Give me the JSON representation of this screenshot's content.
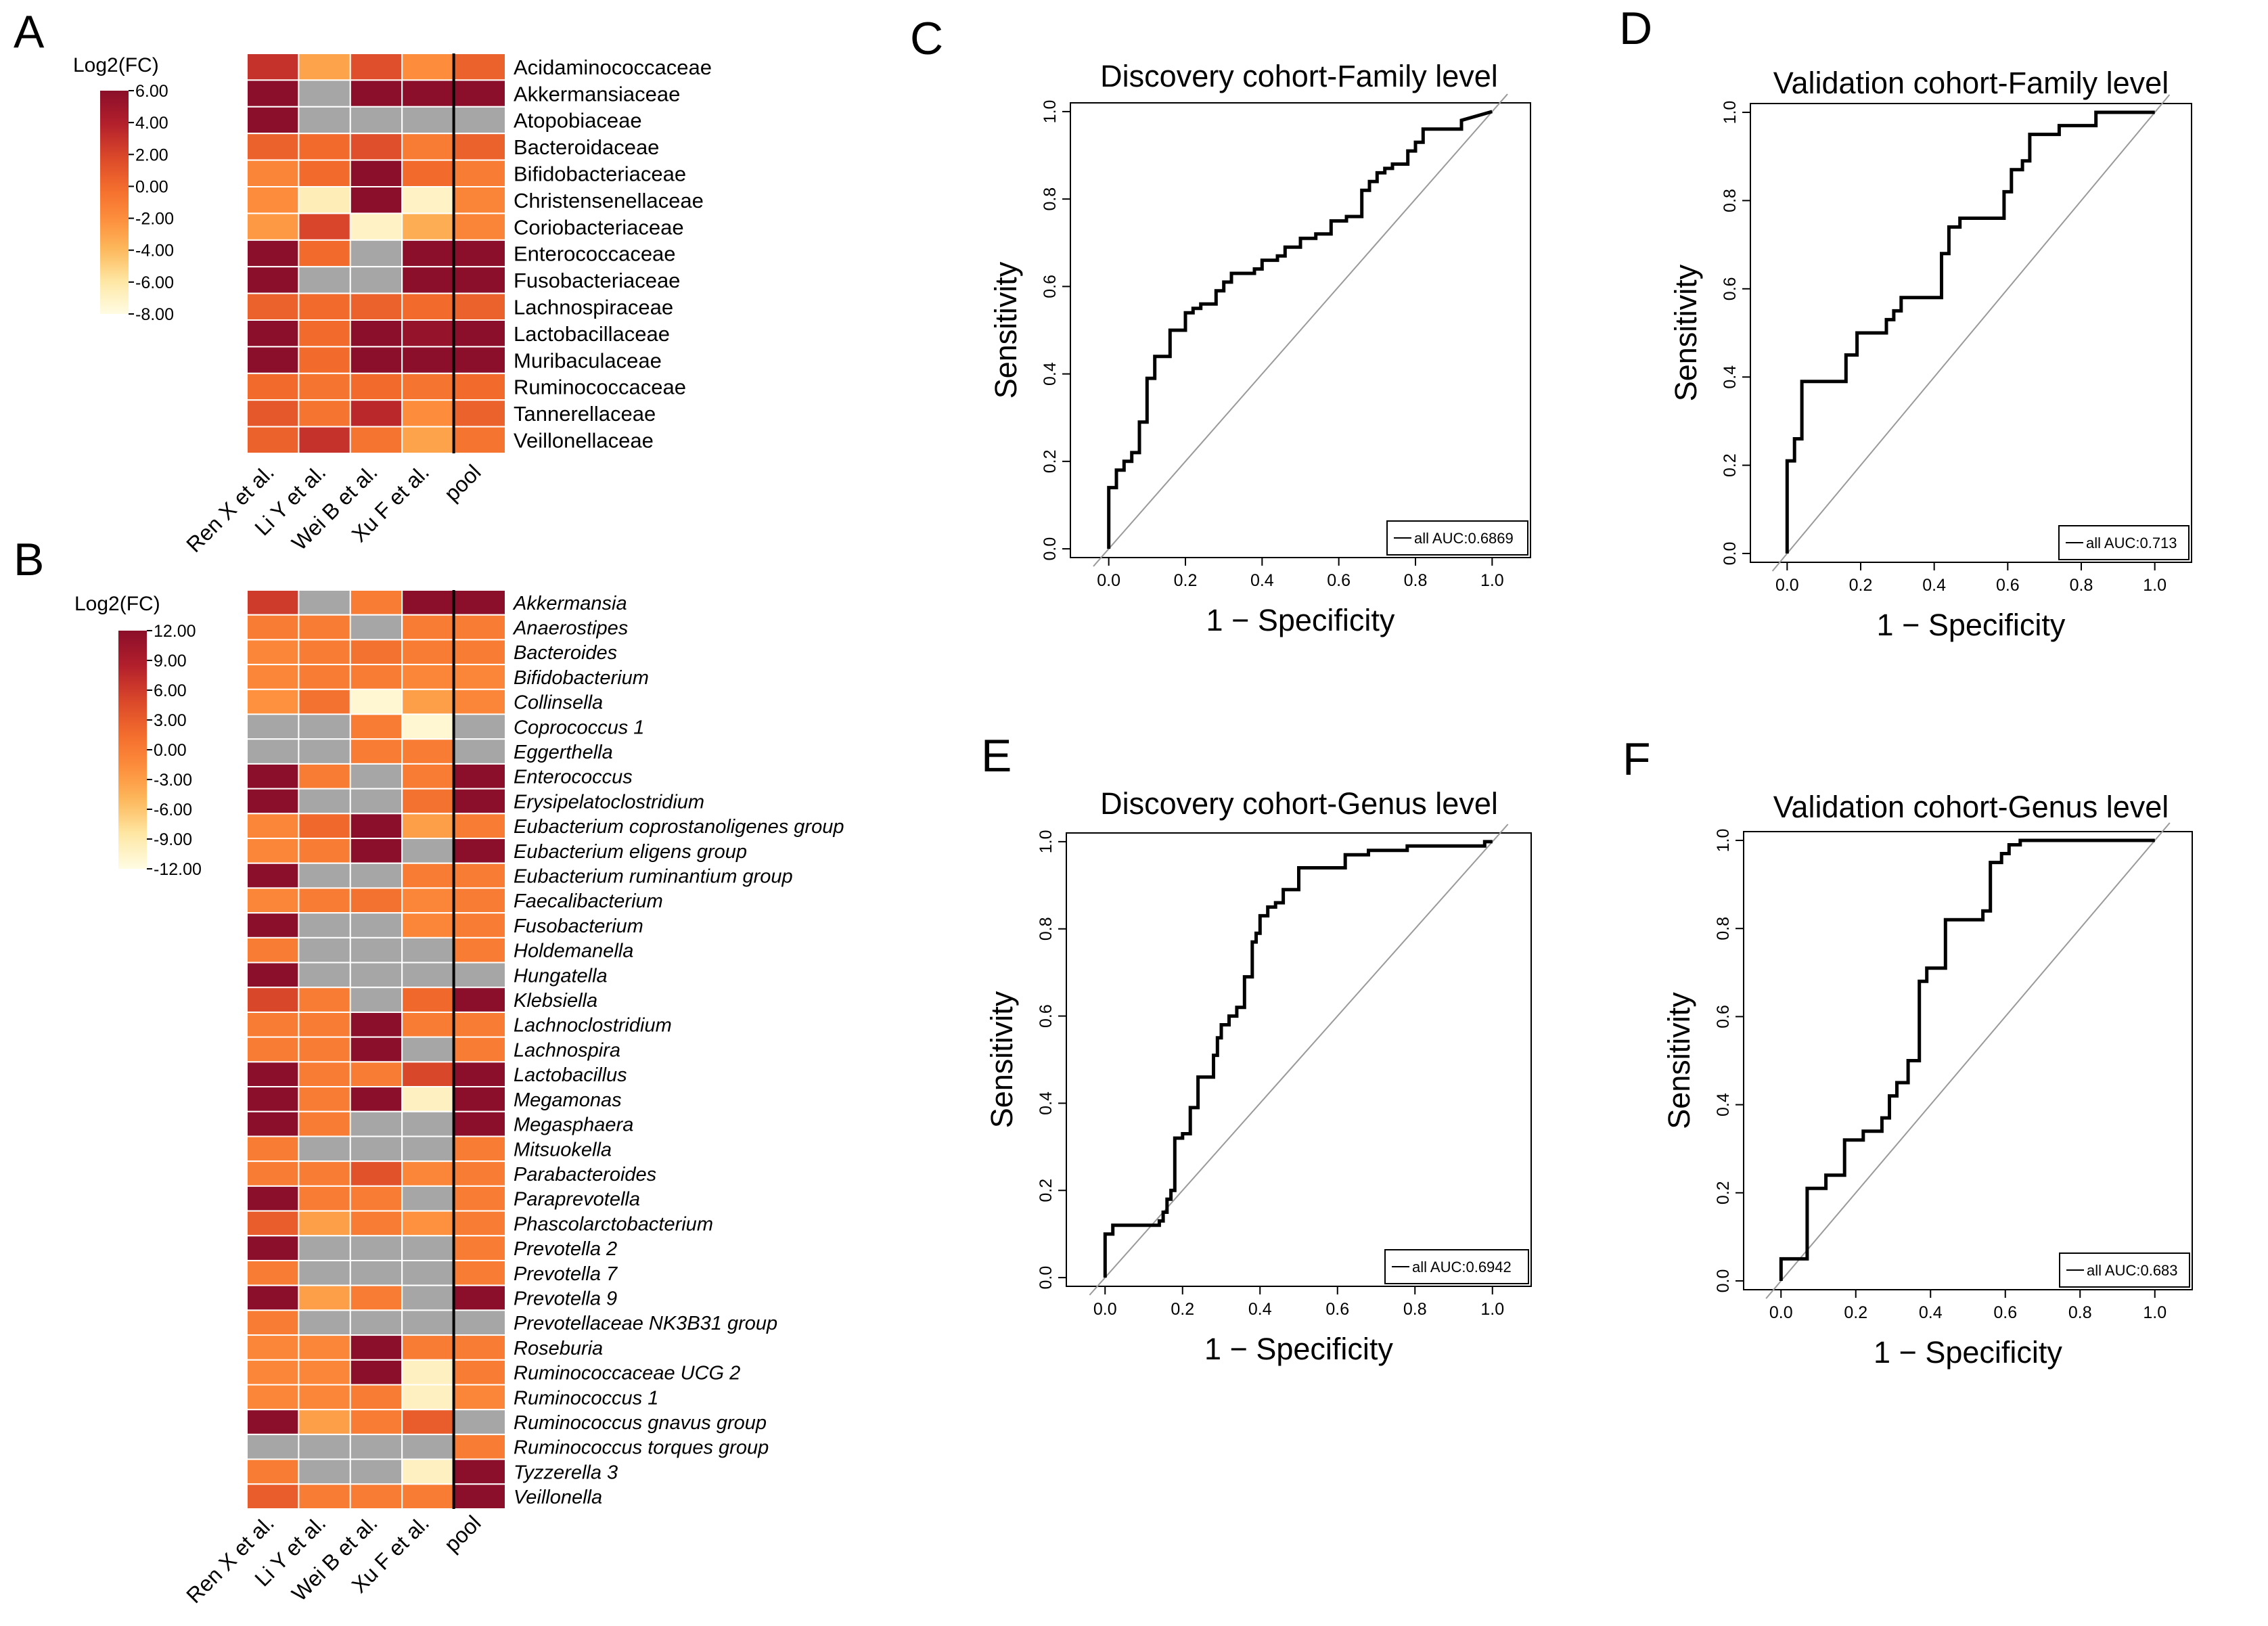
{
  "panel_labels": [
    "A",
    "B",
    "C",
    "D",
    "E",
    "F"
  ],
  "palette": {
    "gray": "#a6a6a6",
    "stops": [
      "#fffce4",
      "#fee8a6",
      "#fdb95c",
      "#fd8d3c",
      "#f26b2c",
      "#d8452a",
      "#b11e2c",
      "#8b0f2a"
    ]
  },
  "chart_data": [
    {
      "panel": "A",
      "type": "heatmap",
      "legend_title": "Log2(FC)",
      "legend_ticks": [
        "6.00",
        "4.00",
        "2.00",
        "0.00",
        "-2.00",
        "-4.00",
        "-6.00",
        "-8.00"
      ],
      "scale_range": [
        -8,
        6
      ],
      "columns": [
        "Ren X et al.",
        "Li Y et al.",
        "Wei B et al.",
        "Xu F et al.",
        "pool"
      ],
      "rows": [
        "Acidaminococcaceae",
        "Akkermansiaceae",
        "Atopobiaceae",
        "Bacteroidaceae",
        "Bifidobacteriaceae",
        "Christensenellaceae",
        "Coriobacteriaceae",
        "Enterococcaceae",
        "Fusobacteriaceae",
        "Lachnospiraceae",
        "Lactobacillaceae",
        "Muribaculaceae",
        "Ruminococcaceae",
        "Tannerellaceae",
        "Veillonellaceae"
      ],
      "values": [
        [
          3,
          -3,
          1.5,
          -2,
          0.5
        ],
        [
          6,
          null,
          6,
          6,
          6
        ],
        [
          6,
          null,
          null,
          null,
          null
        ],
        [
          0.5,
          0,
          1.5,
          -1,
          0.5
        ],
        [
          -1.5,
          0,
          6,
          0,
          -1
        ],
        [
          -2,
          -6.5,
          6,
          -7,
          -1.5
        ],
        [
          -2.5,
          2,
          -7,
          -3.5,
          -1.5
        ],
        [
          6,
          0,
          null,
          6,
          6
        ],
        [
          6,
          null,
          null,
          6,
          6
        ],
        [
          0.5,
          0,
          0.5,
          0,
          0.5
        ],
        [
          6,
          0,
          6,
          5.5,
          6
        ],
        [
          6,
          0,
          6,
          6,
          6
        ],
        [
          0,
          -0.5,
          0,
          -0.5,
          0
        ],
        [
          1,
          -0.5,
          3.5,
          -2,
          0.5
        ],
        [
          0.5,
          3,
          -0.5,
          -3,
          -0.5
        ]
      ],
      "italic_rows": false
    },
    {
      "panel": "B",
      "type": "heatmap",
      "legend_title": "Log2(FC)",
      "legend_ticks": [
        "12.00",
        "9.00",
        "6.00",
        "3.00",
        "0.00",
        "-3.00",
        "-6.00",
        "-9.00",
        "-12.00"
      ],
      "scale_range": [
        -12,
        12
      ],
      "columns": [
        "Ren X et al.",
        "Li Y et al.",
        "Wei B et al.",
        "Xu F et al.",
        "pool"
      ],
      "rows": [
        "Akkermansia",
        "Anaerostipes",
        "Bacteroides",
        "Bifidobacterium",
        "Collinsella",
        "Coprococcus 1",
        "Eggerthella",
        "Enterococcus",
        "Erysipelatoclostridium",
        "Eubacterium coprostanoligenes group",
        "Eubacterium eligens group",
        "Eubacterium ruminantium group",
        "Faecalibacterium",
        "Fusobacterium",
        "Holdemanella",
        "Hungatella",
        "Klebsiella",
        "Lachnoclostridium",
        "Lachnospira",
        "Lactobacillus",
        "Megamonas",
        "Megasphaera",
        "Mitsuokella",
        "Parabacteroides",
        "Paraprevotella",
        "Phascolarctobacterium",
        "Prevotella 2",
        "Prevotella 7",
        "Prevotella 9",
        "Prevotellaceae NK3B31 group",
        "Roseburia",
        "Ruminococcaceae UCG 2",
        "Ruminococcus 1",
        "Ruminococcus gnavus group",
        "Ruminococcus torques group",
        "Tyzzerella 3",
        "Veillonella"
      ],
      "values": [
        [
          6,
          null,
          0,
          12,
          12
        ],
        [
          0,
          0,
          null,
          0,
          0
        ],
        [
          -1,
          0,
          1,
          0,
          0
        ],
        [
          -1,
          0,
          0,
          -1,
          -1
        ],
        [
          -2,
          1,
          -11,
          -3,
          -1
        ],
        [
          null,
          null,
          0,
          -11,
          null
        ],
        [
          null,
          null,
          0,
          0,
          null
        ],
        [
          12,
          0,
          null,
          0,
          12
        ],
        [
          12,
          null,
          null,
          1,
          12
        ],
        [
          -1,
          2,
          12,
          -3,
          0
        ],
        [
          -1,
          0,
          12,
          null,
          12
        ],
        [
          12,
          null,
          null,
          0,
          0
        ],
        [
          -1,
          0,
          1,
          -1,
          0
        ],
        [
          12,
          null,
          null,
          -1,
          0
        ],
        [
          0,
          null,
          null,
          null,
          0
        ],
        [
          12,
          null,
          null,
          null,
          null
        ],
        [
          5,
          0,
          null,
          2,
          12
        ],
        [
          0,
          0,
          12,
          0,
          0
        ],
        [
          0,
          0,
          12,
          null,
          0
        ],
        [
          12,
          0,
          0,
          5,
          12
        ],
        [
          12,
          0,
          12,
          -10,
          12
        ],
        [
          12,
          0,
          null,
          null,
          12
        ],
        [
          0,
          null,
          null,
          null,
          0
        ],
        [
          0,
          0,
          4,
          -1,
          0
        ],
        [
          12,
          0,
          0,
          null,
          0
        ],
        [
          3,
          -3,
          0,
          -2,
          0
        ],
        [
          12,
          null,
          null,
          null,
          0
        ],
        [
          0,
          null,
          null,
          null,
          0
        ],
        [
          12,
          -3,
          0,
          null,
          12
        ],
        [
          0,
          null,
          null,
          null,
          null
        ],
        [
          -1,
          -1,
          12,
          0,
          0
        ],
        [
          -1,
          -1,
          12,
          -10,
          0
        ],
        [
          -1,
          -1,
          0,
          -10,
          -1
        ],
        [
          12,
          -3,
          0,
          3,
          null
        ],
        [
          null,
          null,
          null,
          null,
          0
        ],
        [
          0,
          null,
          null,
          -10,
          12
        ],
        [
          3,
          0,
          0,
          0,
          12
        ]
      ],
      "italic_rows": true
    },
    {
      "panel": "C",
      "type": "line",
      "title": "Discovery cohort-Family level",
      "xlabel": "1 − Specificity",
      "ylabel": "Sensitivity",
      "xlim": [
        -0.1,
        1.1
      ],
      "ylim": [
        -0.02,
        1.02
      ],
      "ticks": [
        0,
        0.2,
        0.4,
        0.6,
        0.8,
        1
      ],
      "tick_labels": [
        "0.0",
        "0.2",
        "0.4",
        "0.6",
        "0.8",
        "1.0"
      ],
      "legend": "all AUC:0.6869",
      "diagonal": [
        [
          -0.04,
          -0.04
        ],
        [
          1.04,
          1.04
        ]
      ],
      "series": [
        {
          "name": "all",
          "x": [
            0,
            0,
            0.02,
            0.02,
            0.04,
            0.04,
            0.06,
            0.06,
            0.08,
            0.08,
            0.1,
            0.1,
            0.12,
            0.12,
            0.16,
            0.16,
            0.2,
            0.2,
            0.22,
            0.22,
            0.24,
            0.24,
            0.28,
            0.28,
            0.3,
            0.3,
            0.32,
            0.32,
            0.38,
            0.38,
            0.4,
            0.4,
            0.44,
            0.44,
            0.46,
            0.46,
            0.5,
            0.5,
            0.54,
            0.54,
            0.58,
            0.58,
            0.62,
            0.62,
            0.66,
            0.66,
            0.68,
            0.68,
            0.7,
            0.7,
            0.72,
            0.72,
            0.74,
            0.74,
            0.78,
            0.78,
            0.8,
            0.8,
            0.82,
            0.82,
            0.92,
            0.92,
            1
          ],
          "y": [
            0,
            0.14,
            0.14,
            0.18,
            0.18,
            0.2,
            0.2,
            0.22,
            0.22,
            0.29,
            0.29,
            0.39,
            0.39,
            0.44,
            0.44,
            0.5,
            0.5,
            0.54,
            0.54,
            0.55,
            0.55,
            0.56,
            0.56,
            0.59,
            0.59,
            0.61,
            0.61,
            0.63,
            0.63,
            0.64,
            0.64,
            0.66,
            0.66,
            0.67,
            0.67,
            0.69,
            0.69,
            0.71,
            0.71,
            0.72,
            0.72,
            0.75,
            0.75,
            0.76,
            0.76,
            0.82,
            0.82,
            0.84,
            0.84,
            0.86,
            0.86,
            0.87,
            0.87,
            0.88,
            0.88,
            0.91,
            0.91,
            0.93,
            0.93,
            0.96,
            0.96,
            0.98,
            1
          ]
        }
      ]
    },
    {
      "panel": "D",
      "type": "line",
      "title": "Validation cohort-Family level",
      "xlabel": "1 − Specificity",
      "ylabel": "Sensitivity",
      "xlim": [
        -0.1,
        1.1
      ],
      "ylim": [
        -0.02,
        1.02
      ],
      "ticks": [
        0,
        0.2,
        0.4,
        0.6,
        0.8,
        1
      ],
      "tick_labels": [
        "0.0",
        "0.2",
        "0.4",
        "0.6",
        "0.8",
        "1.0"
      ],
      "legend": "all AUC:0.713",
      "diagonal": [
        [
          -0.04,
          -0.04
        ],
        [
          1.04,
          1.04
        ]
      ],
      "series": [
        {
          "name": "all",
          "x": [
            0,
            0,
            0.02,
            0.02,
            0.04,
            0.04,
            0.16,
            0.16,
            0.19,
            0.19,
            0.27,
            0.27,
            0.29,
            0.29,
            0.31,
            0.31,
            0.33,
            0.33,
            0.42,
            0.42,
            0.44,
            0.44,
            0.47,
            0.47,
            0.59,
            0.59,
            0.61,
            0.61,
            0.64,
            0.64,
            0.66,
            0.66,
            0.74,
            0.74,
            0.84,
            0.84,
            1
          ],
          "y": [
            0,
            0.21,
            0.21,
            0.26,
            0.26,
            0.39,
            0.39,
            0.45,
            0.45,
            0.5,
            0.5,
            0.53,
            0.53,
            0.55,
            0.55,
            0.58,
            0.58,
            0.58,
            0.58,
            0.68,
            0.68,
            0.74,
            0.74,
            0.76,
            0.76,
            0.82,
            0.82,
            0.87,
            0.87,
            0.89,
            0.89,
            0.95,
            0.95,
            0.97,
            0.97,
            1,
            1
          ]
        }
      ]
    },
    {
      "panel": "E",
      "type": "line",
      "title": "Discovery cohort-Genus level",
      "xlabel": "1 − Specificity",
      "ylabel": "Sensitivity",
      "xlim": [
        -0.1,
        1.1
      ],
      "ylim": [
        -0.02,
        1.02
      ],
      "ticks": [
        0,
        0.2,
        0.4,
        0.6,
        0.8,
        1
      ],
      "tick_labels": [
        "0.0",
        "0.2",
        "0.4",
        "0.6",
        "0.8",
        "1.0"
      ],
      "legend": "all AUC:0.6942",
      "diagonal": [
        [
          -0.04,
          -0.04
        ],
        [
          1.04,
          1.04
        ]
      ],
      "series": [
        {
          "name": "all",
          "x": [
            0,
            0,
            0.02,
            0.02,
            0.14,
            0.14,
            0.15,
            0.15,
            0.16,
            0.16,
            0.17,
            0.17,
            0.18,
            0.18,
            0.2,
            0.2,
            0.22,
            0.22,
            0.24,
            0.24,
            0.28,
            0.28,
            0.29,
            0.29,
            0.3,
            0.3,
            0.32,
            0.32,
            0.34,
            0.34,
            0.36,
            0.36,
            0.38,
            0.38,
            0.39,
            0.39,
            0.4,
            0.4,
            0.42,
            0.42,
            0.44,
            0.44,
            0.46,
            0.46,
            0.5,
            0.5,
            0.62,
            0.62,
            0.64,
            0.64,
            0.68,
            0.68,
            0.78,
            0.78,
            0.98,
            0.98,
            1
          ],
          "y": [
            0,
            0.1,
            0.1,
            0.12,
            0.12,
            0.13,
            0.13,
            0.15,
            0.15,
            0.18,
            0.18,
            0.2,
            0.2,
            0.32,
            0.32,
            0.33,
            0.33,
            0.39,
            0.39,
            0.46,
            0.46,
            0.51,
            0.51,
            0.55,
            0.55,
            0.58,
            0.58,
            0.6,
            0.6,
            0.62,
            0.62,
            0.69,
            0.69,
            0.77,
            0.77,
            0.79,
            0.79,
            0.83,
            0.83,
            0.85,
            0.85,
            0.86,
            0.86,
            0.89,
            0.89,
            0.94,
            0.94,
            0.97,
            0.97,
            0.97,
            0.97,
            0.98,
            0.98,
            0.99,
            0.99,
            1,
            1
          ]
        }
      ]
    },
    {
      "panel": "F",
      "type": "line",
      "title": "Validation cohort-Genus level",
      "xlabel": "1 − Specificity",
      "ylabel": "Sensitivity",
      "xlim": [
        -0.1,
        1.1
      ],
      "ylim": [
        -0.02,
        1.02
      ],
      "ticks": [
        0,
        0.2,
        0.4,
        0.6,
        0.8,
        1
      ],
      "tick_labels": [
        "0.0",
        "0.2",
        "0.4",
        "0.6",
        "0.8",
        "1.0"
      ],
      "legend": "all AUC:0.683",
      "diagonal": [
        [
          -0.04,
          -0.04
        ],
        [
          1.04,
          1.04
        ]
      ],
      "series": [
        {
          "name": "all",
          "x": [
            0,
            0,
            0.07,
            0.07,
            0.12,
            0.12,
            0.17,
            0.17,
            0.22,
            0.22,
            0.27,
            0.27,
            0.29,
            0.29,
            0.31,
            0.31,
            0.34,
            0.34,
            0.37,
            0.37,
            0.39,
            0.39,
            0.44,
            0.44,
            0.54,
            0.54,
            0.56,
            0.56,
            0.59,
            0.59,
            0.61,
            0.61,
            0.64,
            0.64,
            1
          ],
          "y": [
            0,
            0.05,
            0.05,
            0.21,
            0.21,
            0.24,
            0.24,
            0.32,
            0.32,
            0.34,
            0.34,
            0.37,
            0.37,
            0.42,
            0.42,
            0.45,
            0.45,
            0.5,
            0.5,
            0.68,
            0.68,
            0.71,
            0.71,
            0.82,
            0.82,
            0.84,
            0.84,
            0.95,
            0.95,
            0.97,
            0.97,
            0.99,
            0.99,
            1,
            1
          ]
        }
      ]
    }
  ]
}
